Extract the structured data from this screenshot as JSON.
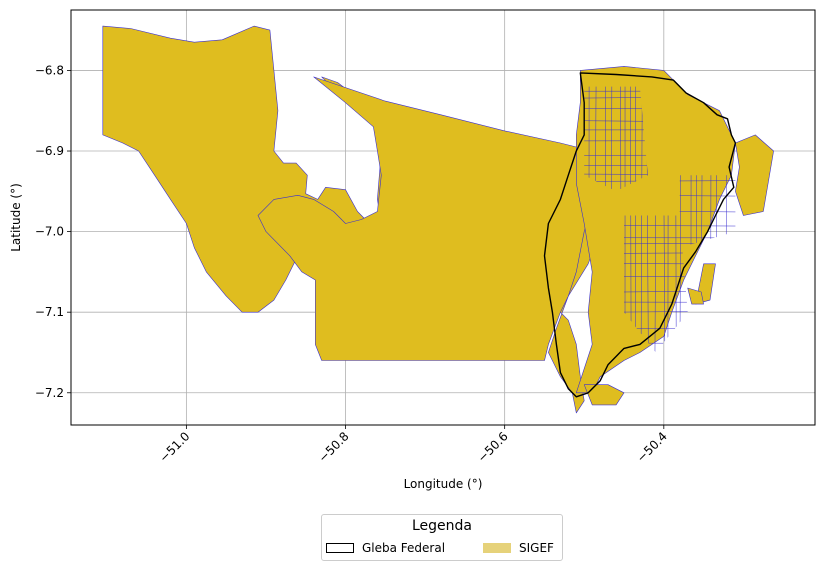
{
  "chart_data": {
    "type": "map",
    "xlabel": "Longitude (°)",
    "ylabel": "Latitude (°)",
    "xlim": [
      -51.145,
      -50.21
    ],
    "ylim": [
      -7.24,
      -6.725
    ],
    "x_ticks": [
      {
        "value": -51.0,
        "label": "−51.0"
      },
      {
        "value": -50.8,
        "label": "−50.8"
      },
      {
        "value": -50.6,
        "label": "−50.6"
      },
      {
        "value": -50.4,
        "label": "−50.4"
      }
    ],
    "y_ticks": [
      {
        "value": -6.8,
        "label": "−6.8"
      },
      {
        "value": -6.9,
        "label": "−6.9"
      },
      {
        "value": -7.0,
        "label": "−7.0"
      },
      {
        "value": -7.1,
        "label": "−7.1"
      },
      {
        "value": -7.2,
        "label": "−7.2"
      }
    ],
    "grid": true,
    "legend": {
      "title": "Legenda",
      "placement": "bottom-center",
      "items": [
        {
          "label": "Gleba Federal",
          "fill": "#ffffff",
          "edge": "#000000"
        },
        {
          "label": "SIGEF",
          "fill": "#e6d27a",
          "edge": "#e6d27a"
        }
      ]
    },
    "colors": {
      "sigef_fill": "#dfbd1f",
      "sigef_edge": "#3a2fd0",
      "gleba_edge": "#000000",
      "grid": "#b0b0b0"
    },
    "sigef_polygons": [
      [
        [
          -51.105,
          -6.745
        ],
        [
          -51.07,
          -6.748
        ],
        [
          -51.02,
          -6.76
        ],
        [
          -50.99,
          -6.765
        ],
        [
          -50.955,
          -6.762
        ],
        [
          -50.915,
          -6.745
        ],
        [
          -50.895,
          -6.75
        ],
        [
          -50.89,
          -6.8
        ],
        [
          -50.885,
          -6.85
        ],
        [
          -50.89,
          -6.9
        ],
        [
          -50.878,
          -6.915
        ],
        [
          -50.862,
          -6.915
        ],
        [
          -50.848,
          -6.93
        ],
        [
          -50.85,
          -6.953
        ],
        [
          -50.835,
          -6.96
        ],
        [
          -50.825,
          -6.945
        ],
        [
          -50.8,
          -6.948
        ],
        [
          -50.785,
          -6.975
        ],
        [
          -50.775,
          -6.985
        ],
        [
          -50.755,
          -6.99
        ],
        [
          -50.76,
          -6.96
        ],
        [
          -50.755,
          -6.9
        ],
        [
          -50.75,
          -6.875
        ],
        [
          -50.77,
          -6.85
        ],
        [
          -50.79,
          -6.83
        ],
        [
          -50.81,
          -6.815
        ],
        [
          -50.83,
          -6.808
        ],
        [
          -50.818,
          -6.82
        ],
        [
          -50.78,
          -6.84
        ],
        [
          -50.72,
          -6.85
        ],
        [
          -50.64,
          -6.87
        ],
        [
          -50.57,
          -6.89
        ],
        [
          -50.51,
          -6.9
        ],
        [
          -50.48,
          -6.905
        ],
        [
          -50.475,
          -6.95
        ],
        [
          -50.48,
          -7.0
        ],
        [
          -50.495,
          -7.04
        ],
        [
          -50.52,
          -7.08
        ],
        [
          -50.535,
          -7.12
        ],
        [
          -50.545,
          -7.15
        ],
        [
          -50.53,
          -7.18
        ],
        [
          -50.515,
          -7.2
        ],
        [
          -50.51,
          -7.225
        ],
        [
          -50.5,
          -7.21
        ],
        [
          -50.505,
          -7.18
        ],
        [
          -50.51,
          -7.14
        ],
        [
          -50.52,
          -7.11
        ],
        [
          -50.54,
          -7.09
        ],
        [
          -50.58,
          -7.075
        ],
        [
          -50.62,
          -7.07
        ],
        [
          -50.66,
          -7.065
        ],
        [
          -50.7,
          -7.06
        ],
        [
          -50.74,
          -7.05
        ],
        [
          -50.77,
          -7.025
        ],
        [
          -50.8,
          -7.0
        ],
        [
          -50.82,
          -6.985
        ],
        [
          -50.84,
          -7.0
        ],
        [
          -50.86,
          -7.03
        ],
        [
          -50.875,
          -7.06
        ],
        [
          -50.89,
          -7.085
        ],
        [
          -50.91,
          -7.1
        ],
        [
          -50.93,
          -7.1
        ],
        [
          -50.95,
          -7.08
        ],
        [
          -50.975,
          -7.05
        ],
        [
          -50.99,
          -7.02
        ],
        [
          -51.0,
          -6.99
        ],
        [
          -51.02,
          -6.96
        ],
        [
          -51.04,
          -6.93
        ],
        [
          -51.06,
          -6.9
        ],
        [
          -51.08,
          -6.89
        ],
        [
          -51.105,
          -6.88
        ]
      ],
      [
        [
          -50.84,
          -6.808
        ],
        [
          -50.75,
          -6.838
        ],
        [
          -50.68,
          -6.855
        ],
        [
          -50.6,
          -6.875
        ],
        [
          -50.53,
          -6.89
        ],
        [
          -50.49,
          -6.9
        ],
        [
          -50.488,
          -6.96
        ],
        [
          -50.5,
          -7.0
        ],
        [
          -50.51,
          -7.05
        ],
        [
          -50.52,
          -7.08
        ],
        [
          -50.53,
          -7.1
        ],
        [
          -50.545,
          -7.14
        ],
        [
          -50.55,
          -7.16
        ],
        [
          -50.83,
          -7.16
        ],
        [
          -50.838,
          -7.14
        ],
        [
          -50.838,
          -7.06
        ],
        [
          -50.855,
          -7.05
        ],
        [
          -50.87,
          -7.03
        ],
        [
          -50.9,
          -7.0
        ],
        [
          -50.91,
          -6.98
        ],
        [
          -50.89,
          -6.96
        ],
        [
          -50.86,
          -6.955
        ],
        [
          -50.84,
          -6.96
        ],
        [
          -50.815,
          -6.975
        ],
        [
          -50.8,
          -6.99
        ],
        [
          -50.78,
          -6.985
        ],
        [
          -50.76,
          -6.975
        ],
        [
          -50.755,
          -6.93
        ],
        [
          -50.76,
          -6.9
        ],
        [
          -50.765,
          -6.87
        ],
        [
          -50.8,
          -6.84
        ]
      ],
      [
        [
          -50.505,
          -6.8
        ],
        [
          -50.45,
          -6.795
        ],
        [
          -50.4,
          -6.8
        ],
        [
          -50.37,
          -6.83
        ],
        [
          -50.33,
          -6.85
        ],
        [
          -50.31,
          -6.89
        ],
        [
          -50.315,
          -6.93
        ],
        [
          -50.33,
          -6.96
        ],
        [
          -50.345,
          -7.0
        ],
        [
          -50.36,
          -7.03
        ],
        [
          -50.375,
          -7.06
        ],
        [
          -50.39,
          -7.1
        ],
        [
          -50.4,
          -7.13
        ],
        [
          -50.43,
          -7.15
        ],
        [
          -50.45,
          -7.16
        ],
        [
          -50.48,
          -7.18
        ],
        [
          -50.49,
          -7.2
        ],
        [
          -50.51,
          -7.2
        ],
        [
          -50.5,
          -7.17
        ],
        [
          -50.49,
          -7.14
        ],
        [
          -50.495,
          -7.1
        ],
        [
          -50.49,
          -7.05
        ],
        [
          -50.5,
          -6.99
        ],
        [
          -50.51,
          -6.94
        ],
        [
          -50.51,
          -6.88
        ],
        [
          -50.505,
          -6.84
        ]
      ],
      [
        [
          -50.31,
          -6.89
        ],
        [
          -50.285,
          -6.88
        ],
        [
          -50.262,
          -6.9
        ],
        [
          -50.275,
          -6.975
        ],
        [
          -50.3,
          -6.98
        ],
        [
          -50.31,
          -6.95
        ],
        [
          -50.305,
          -6.92
        ]
      ],
      [
        [
          -50.35,
          -7.04
        ],
        [
          -50.335,
          -7.04
        ],
        [
          -50.342,
          -7.085
        ],
        [
          -50.36,
          -7.09
        ]
      ],
      [
        [
          -50.37,
          -7.07
        ],
        [
          -50.353,
          -7.075
        ],
        [
          -50.35,
          -7.09
        ],
        [
          -50.365,
          -7.09
        ]
      ],
      [
        [
          -50.5,
          -7.19
        ],
        [
          -50.47,
          -7.19
        ],
        [
          -50.45,
          -7.2
        ],
        [
          -50.46,
          -7.215
        ],
        [
          -50.49,
          -7.215
        ]
      ]
    ],
    "sigef_hatch_regions": [
      [
        [
          -50.5,
          -6.82
        ],
        [
          -50.43,
          -6.82
        ],
        [
          -50.42,
          -6.93
        ],
        [
          -50.46,
          -6.95
        ],
        [
          -50.5,
          -6.93
        ]
      ],
      [
        [
          -50.45,
          -6.98
        ],
        [
          -50.38,
          -6.98
        ],
        [
          -50.37,
          -7.1
        ],
        [
          -50.41,
          -7.15
        ],
        [
          -50.45,
          -7.1
        ]
      ],
      [
        [
          -50.38,
          -6.93
        ],
        [
          -50.31,
          -6.93
        ],
        [
          -50.31,
          -7.0
        ],
        [
          -50.38,
          -7.02
        ]
      ]
    ],
    "gleba_polygon": [
      [
        -50.505,
        -6.803
      ],
      [
        -50.46,
        -6.805
      ],
      [
        -50.415,
        -6.808
      ],
      [
        -50.388,
        -6.812
      ],
      [
        -50.372,
        -6.828
      ],
      [
        -50.35,
        -6.84
      ],
      [
        -50.333,
        -6.855
      ],
      [
        -50.32,
        -6.86
      ],
      [
        -50.315,
        -6.88
      ],
      [
        -50.31,
        -6.89
      ],
      [
        -50.318,
        -6.92
      ],
      [
        -50.312,
        -6.945
      ],
      [
        -50.325,
        -6.96
      ],
      [
        -50.335,
        -6.98
      ],
      [
        -50.345,
        -7.0
      ],
      [
        -50.36,
        -7.025
      ],
      [
        -50.375,
        -7.045
      ],
      [
        -50.38,
        -7.06
      ],
      [
        -50.39,
        -7.09
      ],
      [
        -50.405,
        -7.12
      ],
      [
        -50.43,
        -7.14
      ],
      [
        -50.45,
        -7.145
      ],
      [
        -50.47,
        -7.165
      ],
      [
        -50.48,
        -7.185
      ],
      [
        -50.495,
        -7.2
      ],
      [
        -50.51,
        -7.205
      ],
      [
        -50.52,
        -7.195
      ],
      [
        -50.53,
        -7.175
      ],
      [
        -50.535,
        -7.14
      ],
      [
        -50.54,
        -7.1
      ],
      [
        -50.545,
        -7.07
      ],
      [
        -50.55,
        -7.03
      ],
      [
        -50.545,
        -6.99
      ],
      [
        -50.53,
        -6.96
      ],
      [
        -50.52,
        -6.93
      ],
      [
        -50.51,
        -6.9
      ],
      [
        -50.5,
        -6.88
      ],
      [
        -50.5,
        -6.84
      ]
    ]
  }
}
